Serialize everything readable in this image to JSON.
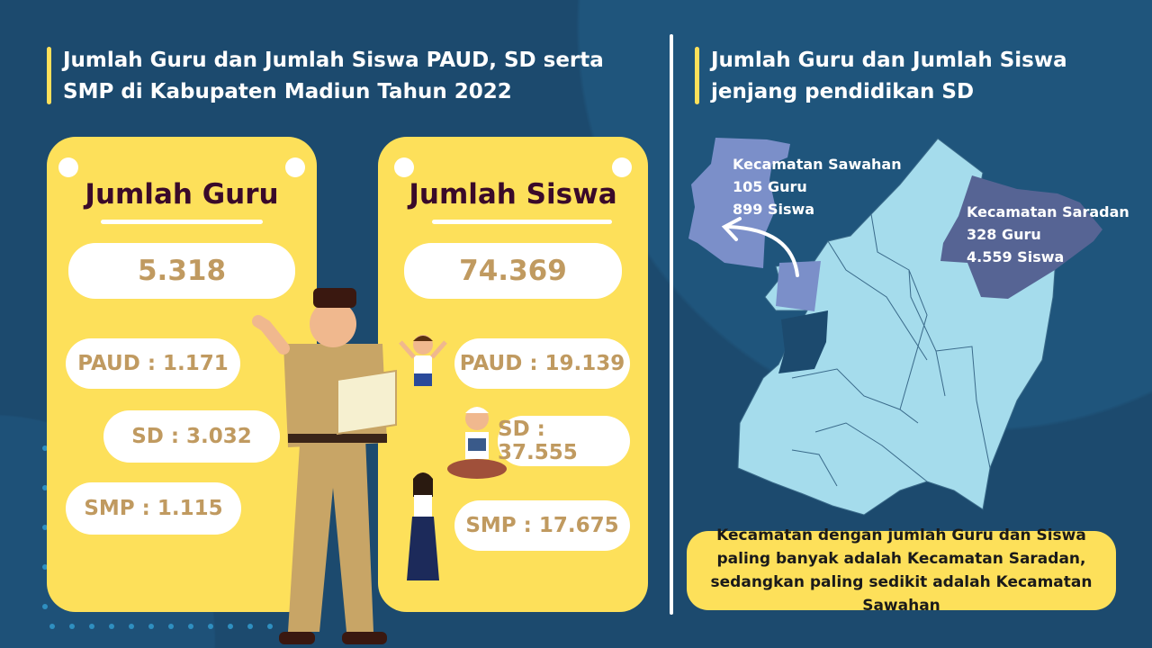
{
  "left_title": "Jumlah Guru dan Jumlah Siswa PAUD, SD serta SMP di Kabupaten Madiun Tahun 2022",
  "right_title": "Jumlah Guru dan Jumlah Siswa jenjang pendidikan SD",
  "guru": {
    "title": "Jumlah Guru",
    "total": "5.318",
    "paud": "PAUD : 1.171",
    "sd": "SD : 3.032",
    "smp": "SMP : 1.115"
  },
  "siswa": {
    "title": "Jumlah Siswa",
    "total": "74.369",
    "paud": "PAUD : 19.139",
    "sd": "SD : 37.555",
    "smp": "SMP : 17.675"
  },
  "map": {
    "sawahan": {
      "name": "Kecamatan Sawahan",
      "guru": "105 Guru",
      "siswa": "899 Siswa",
      "color": "#7b8fc9"
    },
    "saradan": {
      "name": "Kecamatan Saradan",
      "guru": "328 Guru",
      "siswa": "4.559 Siswa",
      "color": "#566494"
    },
    "other_color": "#a5dcec"
  },
  "note": "Kecamatan dengan jumlah Guru dan Siswa paling banyak adalah Kecamatan Saradan, sedangkan paling sedikit adalah Kecamatan Sawahan",
  "colors": {
    "background": "#1c4a6e",
    "accent": "#fde05a",
    "number": "#c09a60",
    "card_title": "#3a0a2a"
  }
}
